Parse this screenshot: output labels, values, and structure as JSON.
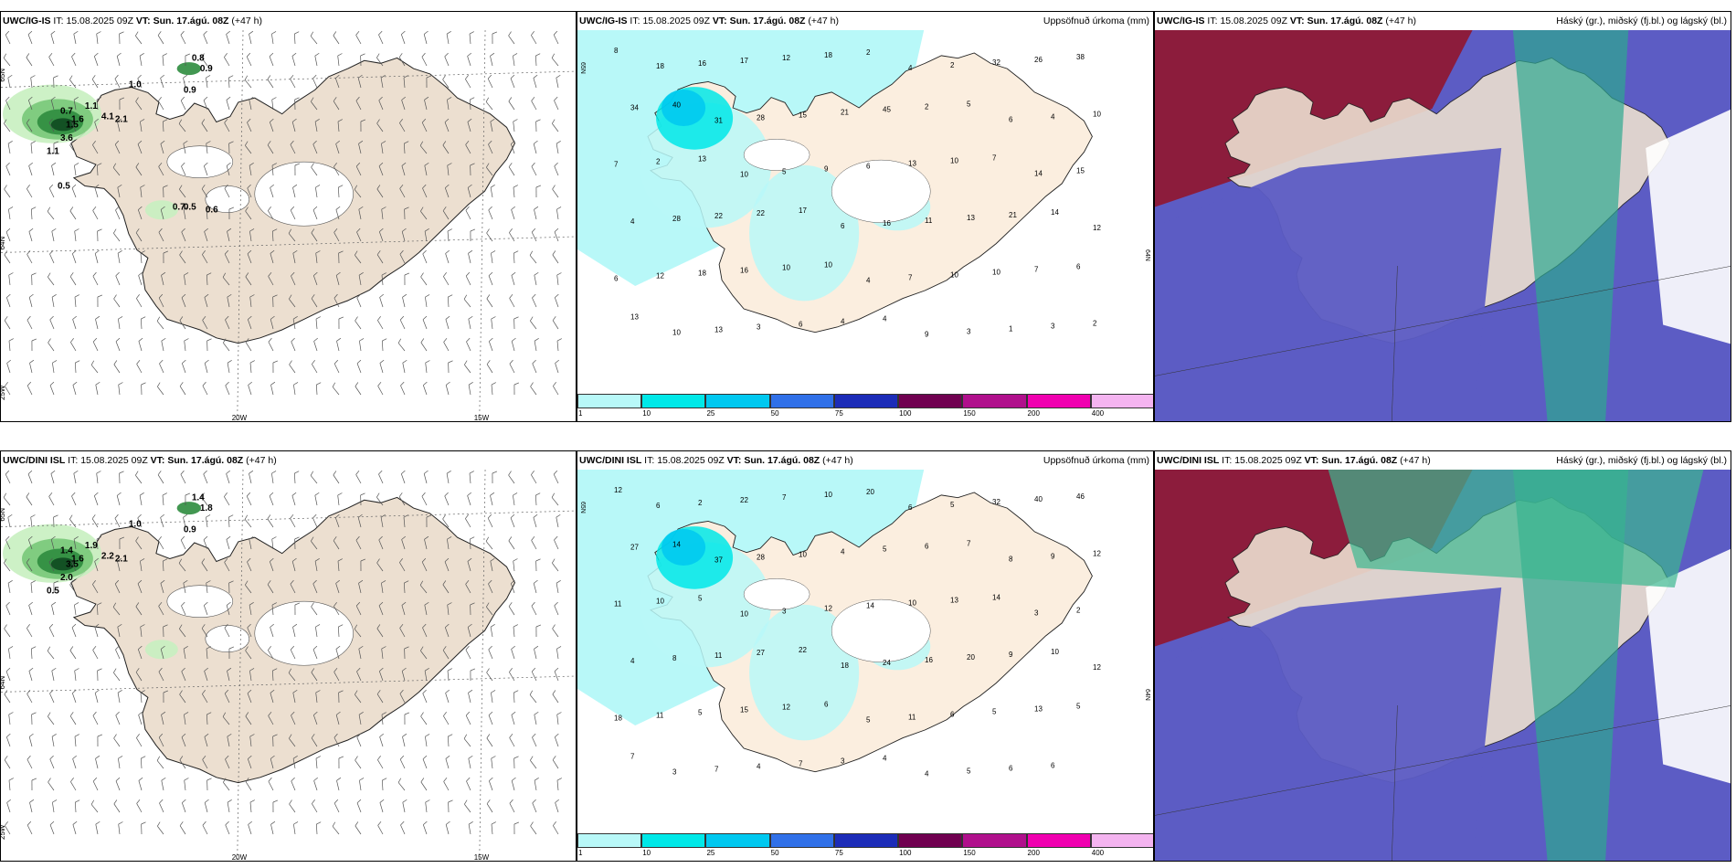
{
  "panels": [
    {
      "model": "UWC/IG-IS",
      "it": "15.08.2025 09Z",
      "vt": "Sun. 17.ágú. 08Z",
      "lead": "(+47 h)",
      "right": ""
    },
    {
      "model": "UWC/IG-IS",
      "it": "15.08.2025 09Z",
      "vt": "Sun. 17.ágú. 08Z",
      "lead": "(+47 h)",
      "right": "Uppsöfnuð úrkoma (mm)"
    },
    {
      "model": "UWC/IG-IS",
      "it": "15.08.2025 09Z",
      "vt": "Sun. 17.ágú. 08Z",
      "lead": "(+47 h)",
      "right": "Háský (gr.), miðský (fj.bl.) og lágský (bl.)"
    },
    {
      "model": "UWC/DINI ISL",
      "it": "15.08.2025 09Z",
      "vt": "Sun. 17.ágú. 08Z",
      "lead": "(+47 h)",
      "right": ""
    },
    {
      "model": "UWC/DINI ISL",
      "it": "15.08.2025 09Z",
      "vt": "Sun. 17.ágú. 08Z",
      "lead": "(+47 h)",
      "right": "Uppsöfnuð úrkoma (mm)"
    },
    {
      "model": "UWC/DINI ISL",
      "it": "15.08.2025 09Z",
      "vt": "Sun. 17.ágú. 08Z",
      "lead": "(+47 h)",
      "right": "Háský (gr.), miðský (fj.bl.) og lágský (bl.)"
    }
  ],
  "labels": {
    "it": "IT:",
    "vt": "VT:"
  },
  "grid_labels": {
    "lat_top": "65N",
    "lat_mid": "64N",
    "lon_left": "25W",
    "lon_mid": "20W",
    "lon_right": "15W"
  },
  "colorbar": {
    "colors": [
      "#b8f8f8",
      "#00e8e8",
      "#00c8f0",
      "#3070e8",
      "#1c2cb8",
      "#700050",
      "#b0108c",
      "#f000b0",
      "#f4b4f0"
    ],
    "ticks": [
      "1",
      "10",
      "25",
      "50",
      "75",
      "100",
      "150",
      "200",
      "400"
    ]
  },
  "precip_top_values": [
    "8",
    "18",
    "16",
    "17",
    "12",
    "18",
    "2",
    "4",
    "2",
    "32",
    "26",
    "38",
    "34",
    "40",
    "31",
    "28",
    "15",
    "21",
    "45",
    "2",
    "5",
    "6",
    "4",
    "10",
    "7",
    "2",
    "13",
    "10",
    "5",
    "9",
    "6",
    "13",
    "10",
    "7",
    "14",
    "15",
    "4",
    "28",
    "22",
    "22",
    "17",
    "6",
    "16",
    "11",
    "13",
    "21",
    "14",
    "12",
    "6",
    "12",
    "18",
    "16",
    "10",
    "10",
    "4",
    "7",
    "10",
    "10",
    "7",
    "6",
    "13",
    "10",
    "13",
    "3",
    "6",
    "4",
    "4",
    "9",
    "3",
    "1",
    "3",
    "2"
  ],
  "precip_bottom_values": [
    "12",
    "6",
    "2",
    "22",
    "7",
    "10",
    "20",
    "6",
    "5",
    "32",
    "40",
    "46",
    "27",
    "14",
    "37",
    "28",
    "10",
    "4",
    "5",
    "6",
    "7",
    "8",
    "9",
    "12",
    "11",
    "10",
    "5",
    "10",
    "3",
    "12",
    "14",
    "10",
    "13",
    "14",
    "3",
    "2",
    "4",
    "8",
    "11",
    "27",
    "22",
    "18",
    "24",
    "16",
    "20",
    "9",
    "10",
    "12",
    "18",
    "11",
    "5",
    "15",
    "12",
    "6",
    "5",
    "11",
    "6",
    "5",
    "13",
    "5",
    "7",
    "3",
    "7",
    "4",
    "7",
    "3",
    "4",
    "4",
    "5",
    "6",
    "6"
  ],
  "wind_values_top": [
    "0.8",
    "0.9",
    "1.0",
    "0.9",
    "0.7",
    "1.1",
    "1.6",
    "4.1",
    "2.1",
    "1.5",
    "3.6",
    "1.1",
    "0.5",
    "0.7",
    "0.5",
    "0.6"
  ],
  "wind_values_bottom": [
    "1.4",
    "1.8",
    "1.0",
    "0.9",
    "1.4",
    "1.9",
    "1.6",
    "2.2",
    "2.1",
    "3.5",
    "2.0",
    "0.5"
  ]
}
